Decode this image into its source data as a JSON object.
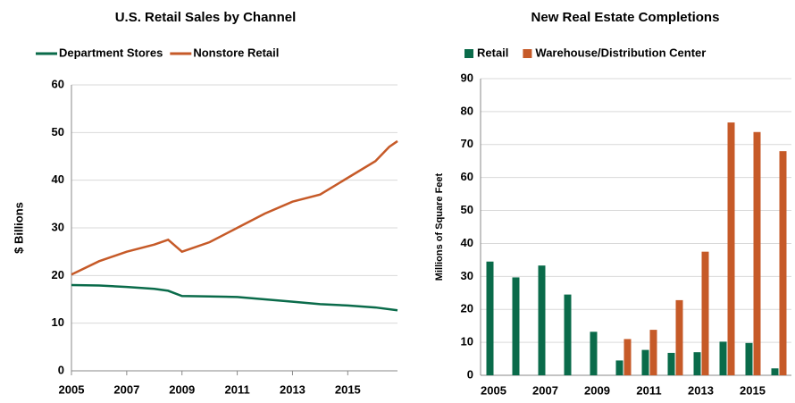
{
  "chart_data": [
    {
      "type": "line",
      "title": "U.S. Retail Sales by Channel",
      "y_label": "$ Billions",
      "xlim": [
        2005,
        2016.8
      ],
      "xticks": [
        2005,
        2007,
        2009,
        2011,
        2013,
        2015
      ],
      "ylim": [
        0,
        60
      ],
      "yticks": [
        0,
        10,
        20,
        30,
        40,
        50,
        60
      ],
      "grid": true,
      "legend": "top",
      "series": [
        {
          "name": "Department Stores",
          "color": "#0a6b4a",
          "x": [
            2005,
            2006,
            2007,
            2008,
            2008.5,
            2009,
            2010,
            2011,
            2012,
            2013,
            2014,
            2015,
            2016,
            2016.8
          ],
          "values": [
            18,
            17.9,
            17.6,
            17.2,
            16.8,
            15.7,
            15.6,
            15.5,
            15.0,
            14.5,
            14.0,
            13.7,
            13.3,
            12.7
          ]
        },
        {
          "name": "Nonstore Retail",
          "color": "#c65a28",
          "x": [
            2005,
            2006,
            2007,
            2008,
            2008.5,
            2009,
            2010,
            2011,
            2012,
            2013,
            2014,
            2015,
            2016,
            2016.5,
            2016.8
          ],
          "values": [
            20.2,
            23,
            25,
            26.5,
            27.5,
            25,
            27,
            30,
            33,
            35.5,
            37,
            40.5,
            44,
            47,
            48.2
          ]
        }
      ]
    },
    {
      "type": "bar",
      "title": "New Real Estate Completions",
      "y_label": "Millions of Square Feet",
      "categories": [
        "2005",
        null,
        "2007",
        null,
        "2009",
        null,
        "2011",
        null,
        "2013",
        null,
        "2015",
        null
      ],
      "ylim": [
        0,
        90
      ],
      "yticks": [
        0,
        10,
        20,
        30,
        40,
        50,
        60,
        70,
        80,
        90
      ],
      "grid": true,
      "legend": "top",
      "series": [
        {
          "name": "Retail",
          "color": "#0a6b4a",
          "values": [
            34.5,
            29.7,
            33.3,
            24.5,
            13.2,
            4.5,
            7.7,
            6.8,
            7.0,
            10.2,
            9.8,
            2.1
          ]
        },
        {
          "name": "Warehouse/Distribution Center",
          "color": "#c65a28",
          "values": [
            null,
            null,
            null,
            null,
            null,
            11,
            13.8,
            22.8,
            37.5,
            76.7,
            73.8,
            68
          ]
        }
      ]
    }
  ]
}
